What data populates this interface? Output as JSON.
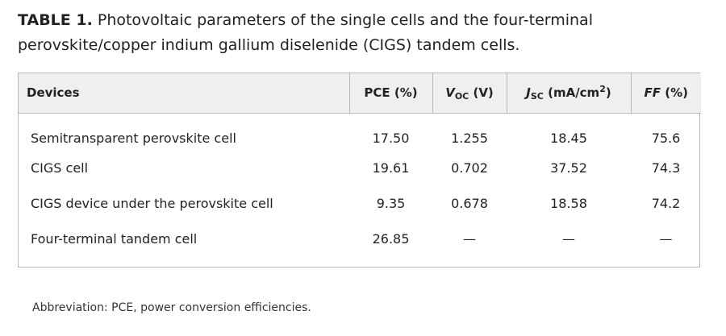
{
  "caption": {
    "label": "TABLE 1.",
    "text": "Photovoltaic parameters of the single cells and the four-terminal perovskite/copper indium gallium diselenide (CIGS) tandem cells."
  },
  "table": {
    "headers": {
      "devices": "Devices",
      "pce": "PCE (%)",
      "voc_main": "V",
      "voc_sub": "OC",
      "voc_unit": " (V)",
      "jsc_main": "J",
      "jsc_sub": "SC",
      "jsc_unit": " (mA/cm",
      "jsc_sup": "2",
      "jsc_close": ")",
      "ff_main": "FF",
      "ff_unit": " (%)"
    },
    "rows": [
      {
        "device": "Semitransparent perovskite cell",
        "pce": "17.50",
        "voc": "1.255",
        "jsc": "18.45",
        "ff": "75.6"
      },
      {
        "device": "CIGS cell",
        "pce": "19.61",
        "voc": "0.702",
        "jsc": "37.52",
        "ff": "74.3"
      },
      {
        "device": "CIGS device under the perovskite cell",
        "pce": "9.35",
        "voc": "0.678",
        "jsc": "18.58",
        "ff": "74.2"
      },
      {
        "device": "Four-terminal tandem cell",
        "pce": "26.85",
        "voc": "—",
        "jsc": "—",
        "ff": "—"
      }
    ]
  },
  "footnote": "Abbreviation: PCE, power conversion efficiencies."
}
